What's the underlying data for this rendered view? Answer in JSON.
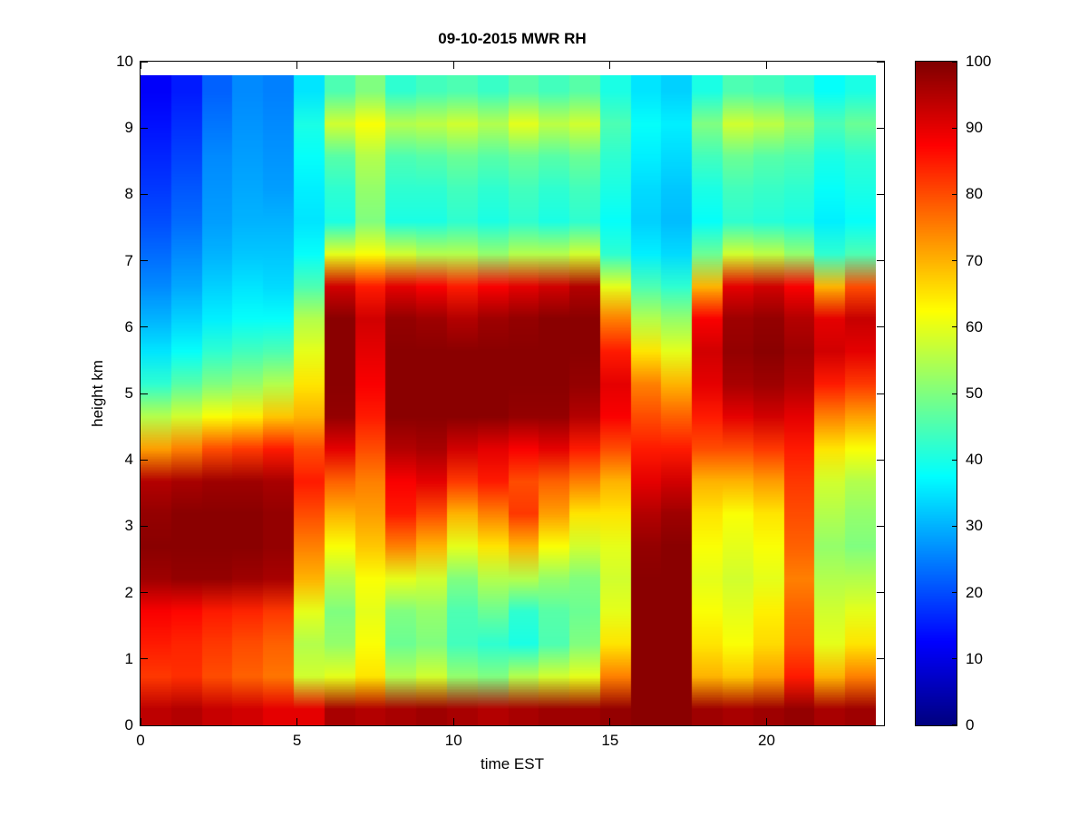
{
  "figure": {
    "background": "#ffffff"
  },
  "chart_data": {
    "type": "heatmap",
    "title": "09-10-2015 MWR RH",
    "xlabel": "time EST",
    "ylabel": "height km",
    "xlim": [
      0,
      23.75
    ],
    "ylim": [
      0,
      10
    ],
    "x_ticks": [
      0,
      5,
      10,
      15,
      20
    ],
    "y_ticks": [
      0,
      1,
      2,
      3,
      4,
      5,
      6,
      7,
      8,
      9,
      10
    ],
    "data_extent": {
      "x": [
        0,
        23.5
      ],
      "y": [
        0,
        9.8
      ]
    },
    "times": [
      0,
      1,
      2,
      3,
      4,
      5,
      6,
      7,
      8,
      9,
      10,
      11,
      12,
      13,
      14,
      15,
      16,
      17,
      18,
      19,
      20,
      21,
      22,
      23
    ],
    "heights_top_to_bottom": [
      9.75,
      9.25,
      8.75,
      8.25,
      7.75,
      7.25,
      6.75,
      6.25,
      5.75,
      5.25,
      4.75,
      4.25,
      3.75,
      3.25,
      2.75,
      2.25,
      1.75,
      1.25,
      0.75,
      0.25
    ],
    "colormap": "jet",
    "grid": false,
    "legend": "none",
    "colorbar": {
      "min": 0,
      "max": 100,
      "ticks": [
        0,
        10,
        20,
        30,
        40,
        50,
        60,
        70,
        80,
        90,
        100
      ]
    },
    "z_columns": [
      [
        12,
        14,
        16,
        18,
        20,
        23,
        26,
        30,
        35,
        42,
        55,
        72,
        95,
        98,
        99,
        97,
        88,
        85,
        82,
        94
      ],
      [
        15,
        17,
        19,
        21,
        23,
        26,
        29,
        33,
        38,
        46,
        58,
        75,
        96,
        99,
        99,
        98,
        87,
        84,
        83,
        95
      ],
      [
        22,
        24,
        26,
        27,
        28,
        30,
        33,
        36,
        42,
        50,
        62,
        80,
        97,
        99,
        99,
        98,
        85,
        82,
        80,
        93
      ],
      [
        26,
        27,
        28,
        29,
        30,
        32,
        35,
        38,
        44,
        52,
        64,
        82,
        97,
        99,
        99,
        97,
        84,
        80,
        78,
        92
      ],
      [
        25,
        26,
        27,
        28,
        30,
        32,
        34,
        38,
        45,
        55,
        68,
        85,
        96,
        98,
        98,
        96,
        82,
        78,
        76,
        90
      ],
      [
        35,
        40,
        38,
        36,
        35,
        38,
        45,
        55,
        60,
        65,
        70,
        80,
        85,
        80,
        75,
        70,
        60,
        55,
        58,
        90
      ],
      [
        45,
        58,
        46,
        42,
        40,
        60,
        92,
        99,
        99,
        99,
        98,
        90,
        78,
        70,
        62,
        55,
        50,
        52,
        60,
        96
      ],
      [
        50,
        62,
        55,
        52,
        50,
        62,
        85,
        92,
        90,
        88,
        85,
        80,
        75,
        72,
        68,
        62,
        60,
        62,
        65,
        95
      ],
      [
        42,
        55,
        45,
        42,
        40,
        58,
        90,
        98,
        99,
        99,
        99,
        95,
        88,
        85,
        75,
        60,
        50,
        48,
        55,
        96
      ],
      [
        44,
        56,
        46,
        42,
        40,
        55,
        88,
        97,
        99,
        99,
        99,
        96,
        90,
        80,
        70,
        58,
        52,
        50,
        58,
        97
      ],
      [
        45,
        58,
        48,
        44,
        42,
        55,
        85,
        95,
        99,
        99,
        99,
        92,
        82,
        70,
        60,
        50,
        45,
        44,
        52,
        96
      ],
      [
        43,
        55,
        46,
        42,
        40,
        52,
        88,
        97,
        99,
        99,
        99,
        90,
        85,
        75,
        65,
        55,
        48,
        42,
        50,
        95
      ],
      [
        46,
        60,
        48,
        44,
        42,
        55,
        90,
        98,
        99,
        99,
        98,
        88,
        80,
        82,
        70,
        55,
        42,
        40,
        55,
        96
      ],
      [
        44,
        56,
        46,
        42,
        40,
        55,
        92,
        99,
        99,
        99,
        98,
        90,
        78,
        72,
        62,
        52,
        46,
        45,
        58,
        97
      ],
      [
        46,
        58,
        48,
        44,
        42,
        58,
        95,
        99,
        99,
        98,
        95,
        85,
        75,
        65,
        58,
        50,
        48,
        50,
        60,
        97
      ],
      [
        40,
        45,
        42,
        40,
        38,
        42,
        60,
        75,
        85,
        90,
        88,
        80,
        70,
        65,
        60,
        58,
        60,
        65,
        75,
        98
      ],
      [
        35,
        38,
        36,
        34,
        33,
        36,
        45,
        55,
        65,
        75,
        80,
        85,
        90,
        95,
        98,
        99,
        99,
        99,
        99,
        99
      ],
      [
        33,
        36,
        34,
        32,
        31,
        34,
        42,
        52,
        60,
        70,
        78,
        85,
        92,
        97,
        99,
        99,
        99,
        99,
        99,
        99
      ],
      [
        40,
        50,
        44,
        40,
        38,
        48,
        70,
        88,
        92,
        90,
        85,
        80,
        70,
        65,
        62,
        60,
        62,
        65,
        70,
        97
      ],
      [
        45,
        58,
        48,
        44,
        42,
        58,
        90,
        97,
        98,
        96,
        90,
        80,
        70,
        62,
        60,
        58,
        60,
        62,
        68,
        96
      ],
      [
        44,
        56,
        46,
        43,
        41,
        56,
        92,
        98,
        99,
        97,
        92,
        82,
        72,
        65,
        62,
        60,
        64,
        66,
        72,
        97
      ],
      [
        42,
        52,
        45,
        42,
        40,
        52,
        88,
        95,
        97,
        95,
        90,
        85,
        82,
        80,
        78,
        75,
        78,
        80,
        85,
        98
      ],
      [
        38,
        45,
        40,
        38,
        36,
        42,
        70,
        90,
        92,
        85,
        75,
        65,
        58,
        55,
        52,
        55,
        58,
        60,
        70,
        96
      ],
      [
        40,
        48,
        42,
        40,
        38,
        45,
        80,
        93,
        90,
        82,
        72,
        62,
        55,
        52,
        50,
        55,
        60,
        65,
        75,
        97
      ]
    ]
  }
}
